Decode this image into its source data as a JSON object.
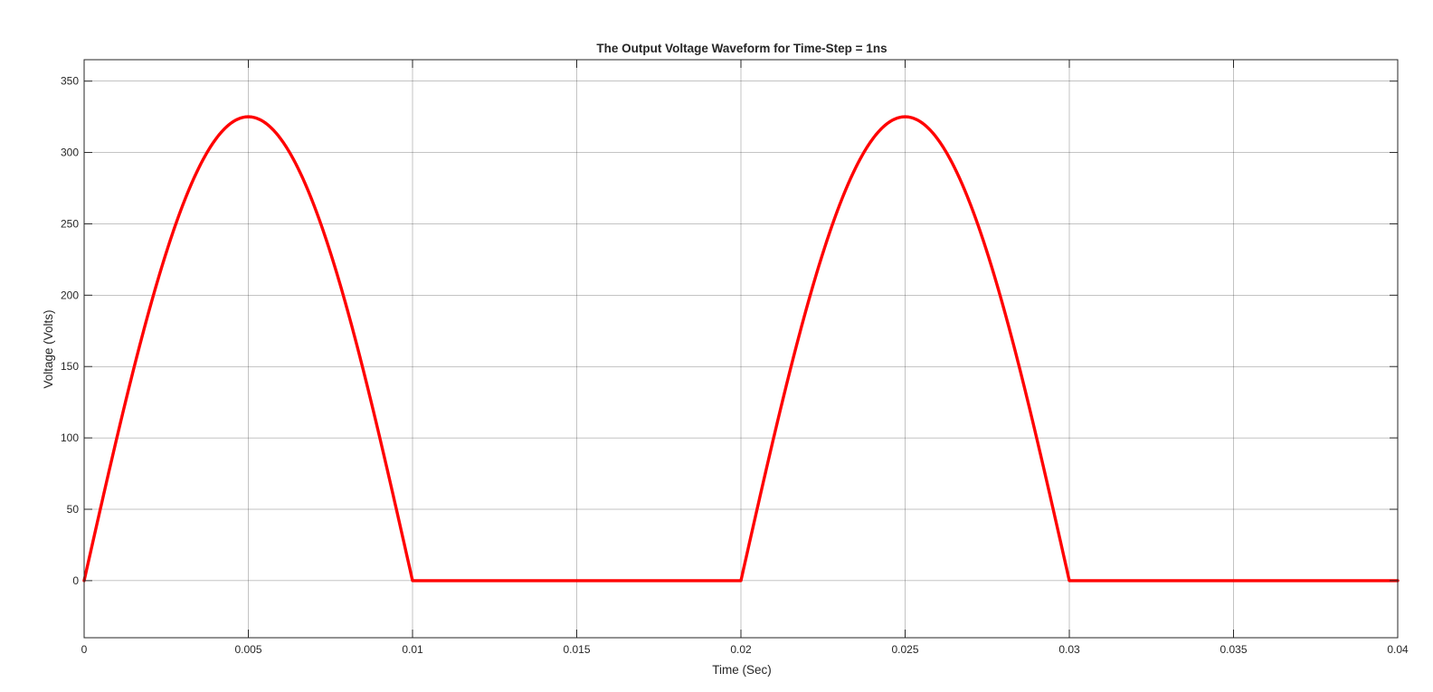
{
  "chart_data": {
    "type": "line",
    "title": "The Output Voltage Waveform for Time-Step = 1ns",
    "xlabel": "Time (Sec)",
    "ylabel": "Voltage (Volts)",
    "xlim": [
      0,
      0.04
    ],
    "ylim": [
      -40,
      365
    ],
    "xticks": [
      0,
      0.005,
      0.01,
      0.015,
      0.02,
      0.025,
      0.03,
      0.035,
      0.04
    ],
    "xtick_labels": [
      "0",
      "0.005",
      "0.01",
      "0.015",
      "0.02",
      "0.025",
      "0.03",
      "0.035",
      "0.04"
    ],
    "yticks": [
      0,
      50,
      100,
      150,
      200,
      250,
      300,
      350
    ],
    "ytick_labels": [
      "0",
      "50",
      "100",
      "150",
      "200",
      "250",
      "300",
      "350"
    ],
    "grid": true,
    "legend": false,
    "series": [
      {
        "color": "#ff0000",
        "peak": 325,
        "frequency_hz": 50,
        "waveform": "half-wave rectified sine",
        "x": [
          0,
          0.0005,
          0.001,
          0.0015,
          0.002,
          0.0025,
          0.003,
          0.0035,
          0.004,
          0.0045,
          0.005,
          0.0055,
          0.006,
          0.0065,
          0.007,
          0.0075,
          0.008,
          0.0085,
          0.009,
          0.0095,
          0.01,
          0.02,
          0.0205,
          0.021,
          0.0215,
          0.022,
          0.0225,
          0.023,
          0.0235,
          0.024,
          0.0245,
          0.025,
          0.0255,
          0.026,
          0.0265,
          0.027,
          0.0275,
          0.028,
          0.0285,
          0.029,
          0.0295,
          0.03,
          0.04
        ],
        "y": [
          0,
          50.8,
          100.4,
          147.5,
          191.0,
          229.8,
          262.9,
          289.6,
          309.1,
          321.0,
          325,
          321.0,
          309.1,
          289.6,
          262.9,
          229.8,
          191.0,
          147.5,
          100.4,
          50.8,
          0,
          0,
          50.8,
          100.4,
          147.5,
          191.0,
          229.8,
          262.9,
          289.6,
          309.1,
          321.0,
          325,
          321.0,
          309.1,
          289.6,
          262.9,
          229.8,
          191.0,
          147.5,
          100.4,
          50.8,
          0,
          0
        ]
      }
    ]
  }
}
